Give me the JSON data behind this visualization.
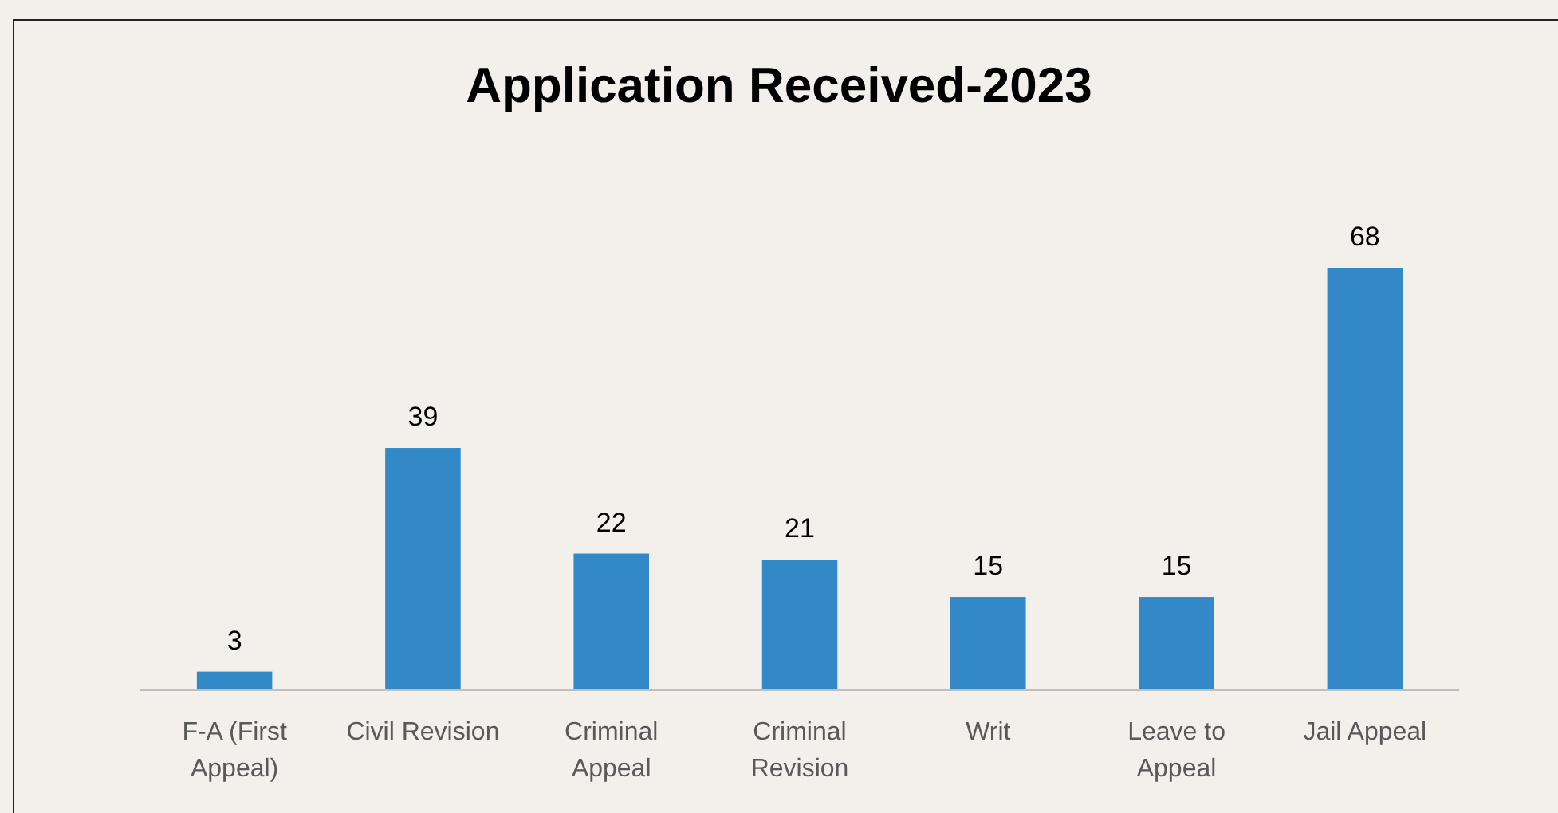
{
  "chart_data": {
    "type": "bar",
    "title": "Application Received-2023",
    "categories": [
      "F-A (First Appeal)",
      "Civil Revision",
      "Criminal Appeal",
      "Criminal Revision",
      "Writ",
      "Leave to Appeal",
      "Jail Appeal"
    ],
    "values": [
      3,
      39,
      22,
      21,
      15,
      15,
      68
    ],
    "color": "#3388c8",
    "data_labels": true
  }
}
